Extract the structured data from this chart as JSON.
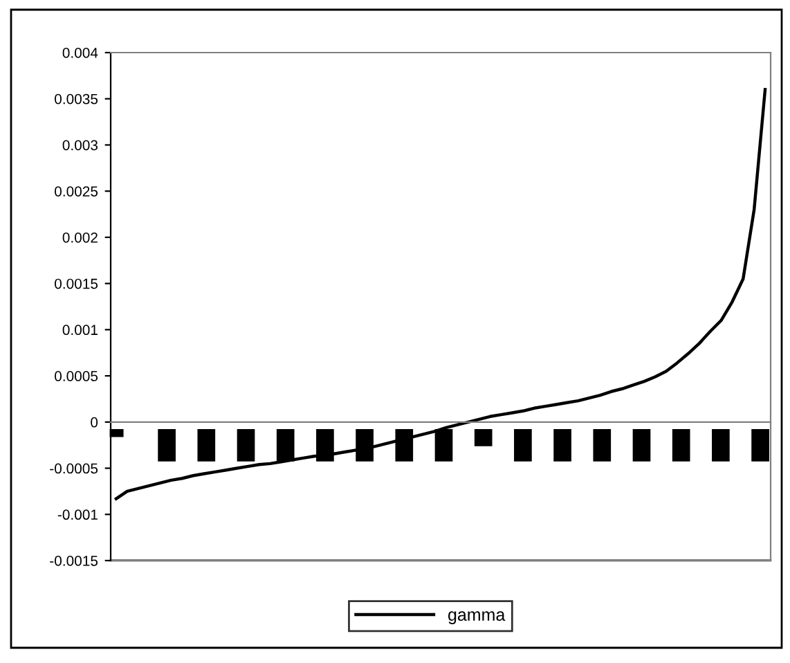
{
  "chart_data": {
    "type": "line",
    "categories": [
      null,
      null,
      null,
      null,
      null,
      null,
      null,
      null,
      null,
      null,
      null,
      null,
      null,
      null,
      null,
      null,
      null,
      null,
      null,
      null,
      null,
      null,
      null,
      null,
      null,
      null,
      null,
      null,
      null,
      null,
      null,
      null,
      null,
      null,
      null,
      null,
      null,
      null,
      null,
      null,
      null,
      null,
      null,
      null,
      null,
      null,
      null,
      null,
      null,
      null,
      null,
      null,
      null,
      null,
      null,
      null,
      null,
      null,
      null,
      null
    ],
    "series": [
      {
        "name": "gamma",
        "color": "#000000",
        "values": [
          -0.00083,
          -0.00075,
          -0.00072,
          -0.00069,
          -0.00066,
          -0.00063,
          -0.00061,
          -0.00058,
          -0.00056,
          -0.00054,
          -0.00052,
          -0.0005,
          -0.00048,
          -0.00046,
          -0.00045,
          -0.00043,
          -0.00041,
          -0.00039,
          -0.00037,
          -0.00036,
          -0.00034,
          -0.00032,
          -0.0003,
          -0.00028,
          -0.00025,
          -0.00022,
          -0.00019,
          -0.00016,
          -0.00013,
          -0.0001,
          -6e-05,
          -3e-05,
          0.0,
          3e-05,
          6e-05,
          8e-05,
          0.0001,
          0.00012,
          0.00015,
          0.00017,
          0.00019,
          0.00021,
          0.00023,
          0.00026,
          0.00029,
          0.00033,
          0.00036,
          0.0004,
          0.00044,
          0.00049,
          0.00055,
          0.00064,
          0.00074,
          0.00085,
          0.00098,
          0.0011,
          0.0013,
          0.00155,
          0.0023,
          0.0036
        ]
      }
    ],
    "ylim": [
      -0.0015,
      0.004
    ],
    "yticks": [
      -0.0015,
      -0.001,
      -0.0005,
      0,
      0.0005,
      0.001,
      0.0015,
      0.002,
      0.0025,
      0.003,
      0.0035,
      0.004
    ],
    "legend": "bottom",
    "marker": "none",
    "line_style": "solid"
  }
}
